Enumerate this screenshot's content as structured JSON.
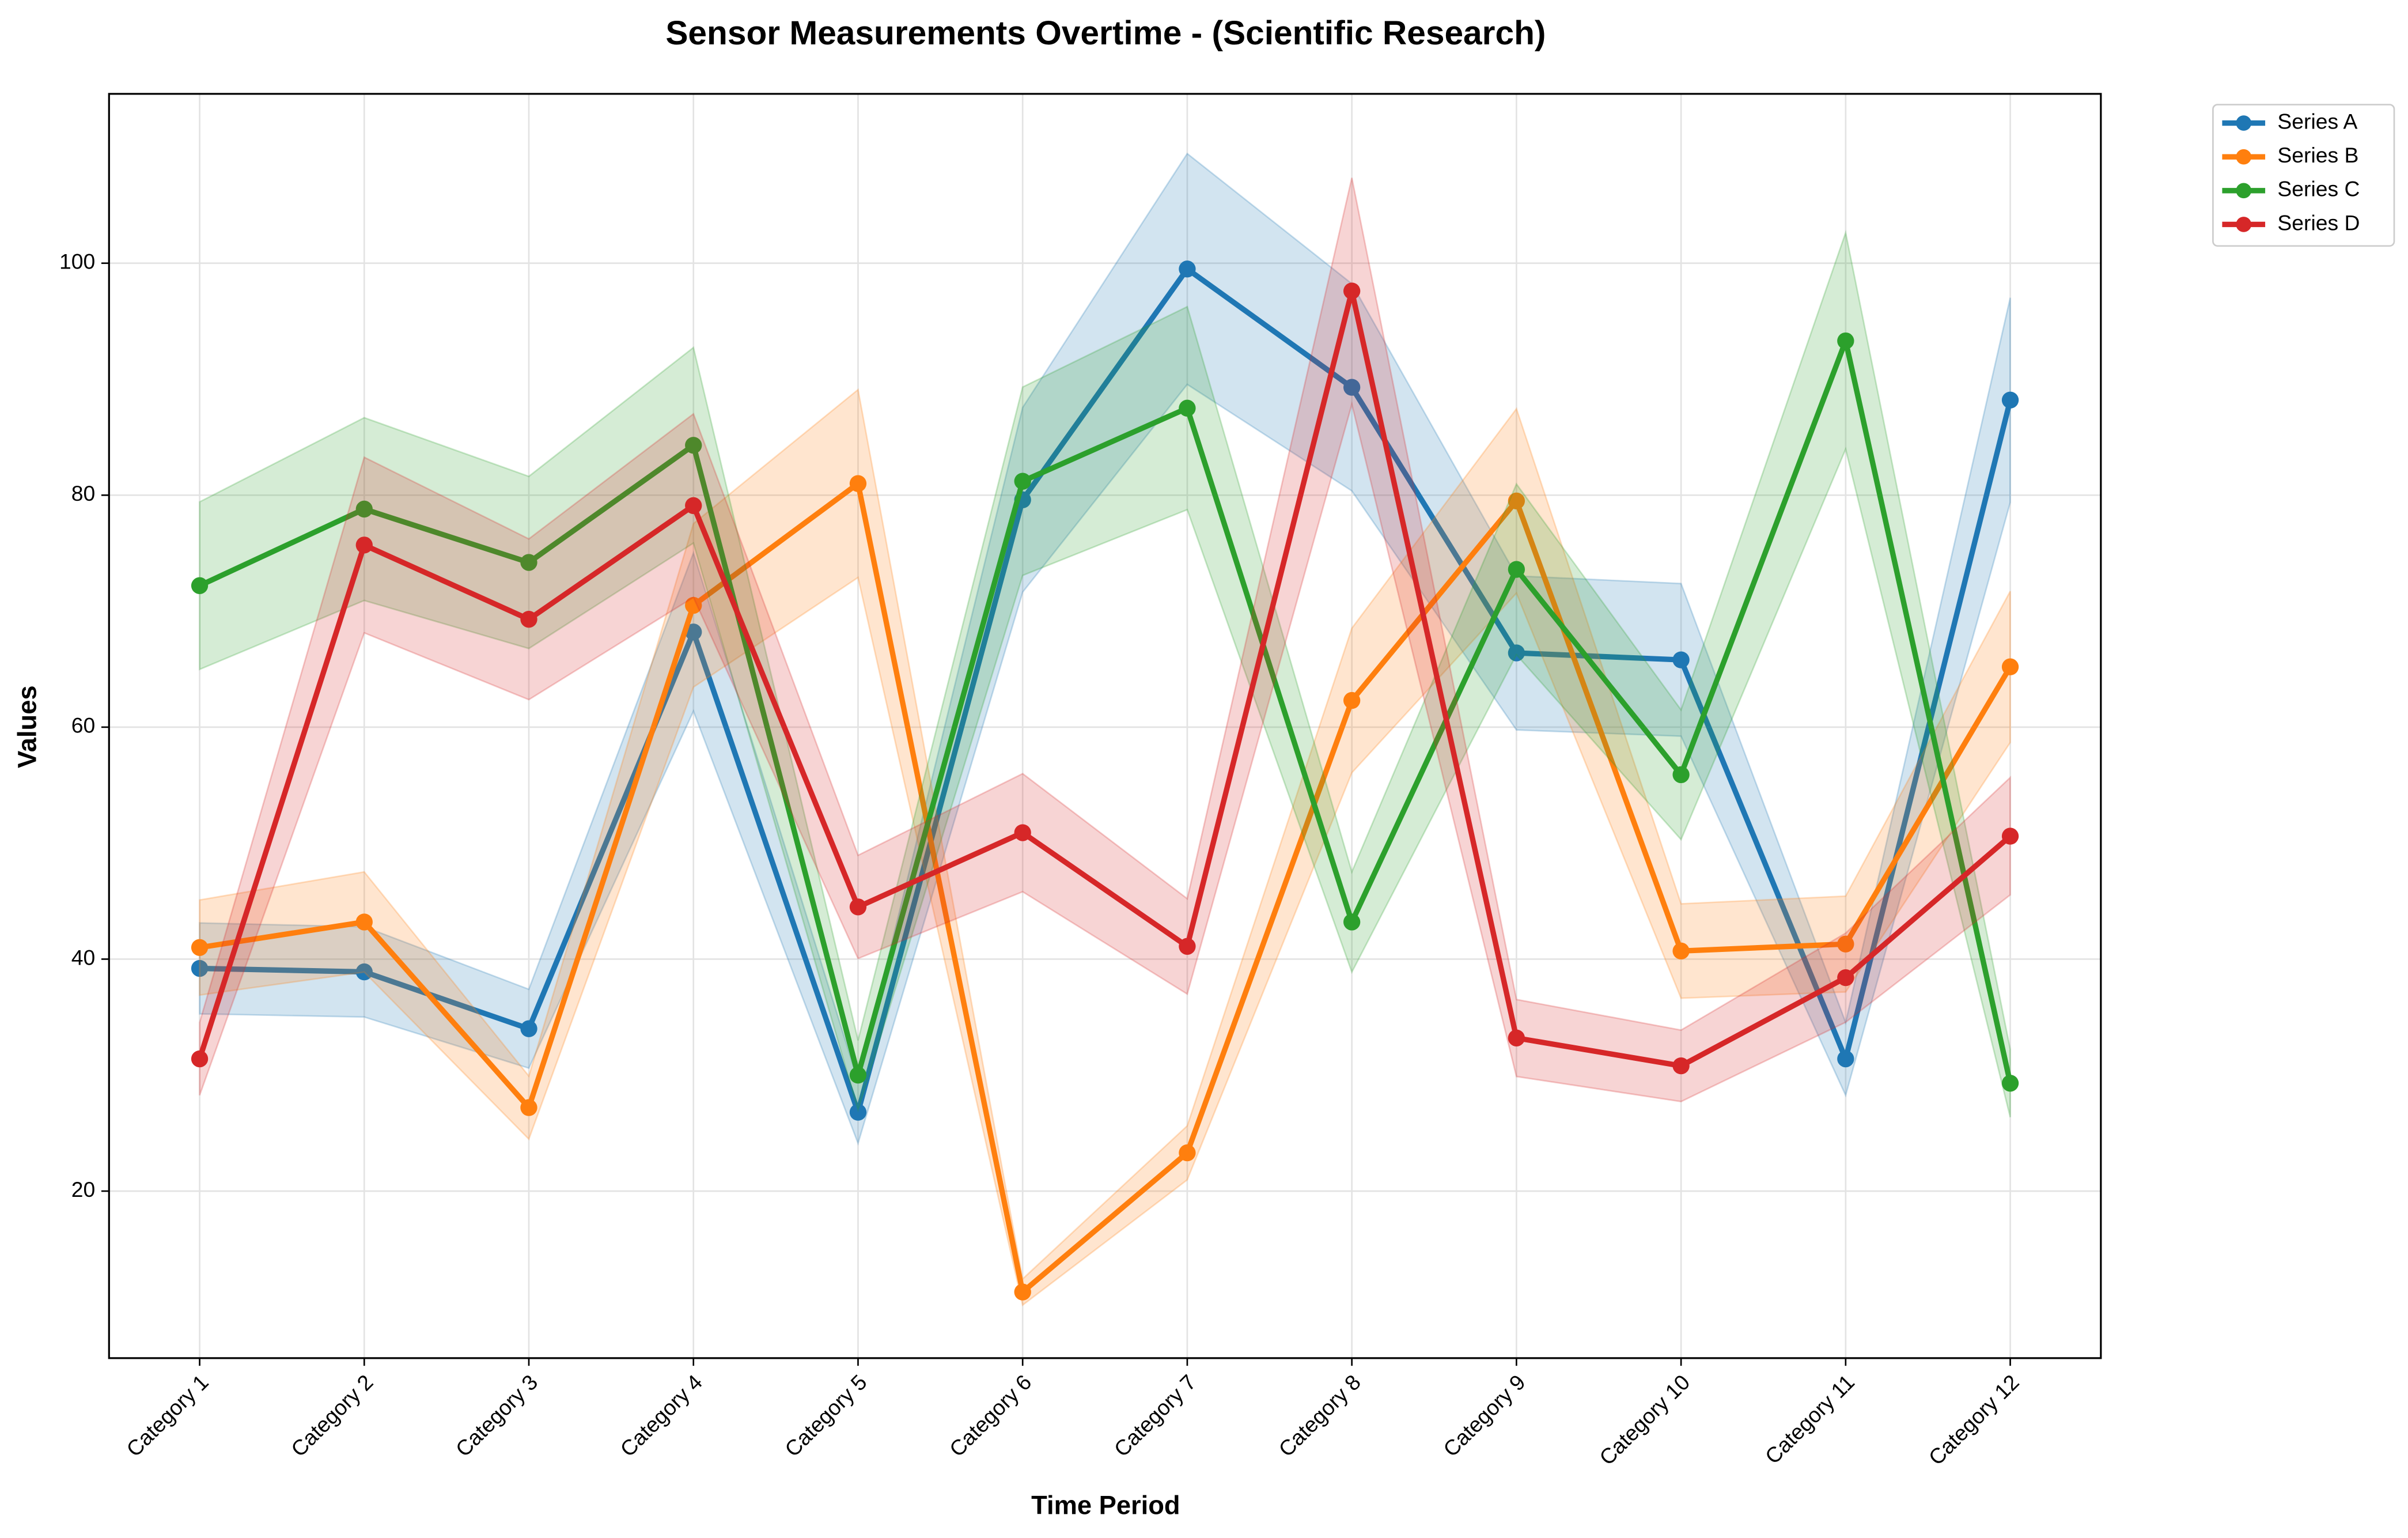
{
  "chart_data": {
    "type": "line",
    "title": "Sensor Measurements Overtime - (Scientific Research)",
    "x_label": "Time Period",
    "y_label": "Values",
    "categories": [
      "Category 1",
      "Category 2",
      "Category 3",
      "Category 4",
      "Category 5",
      "Category 6",
      "Category 7",
      "Category 8",
      "Category 9",
      "Category 10",
      "Category 11",
      "Category 12"
    ],
    "series": [
      {
        "name": "Series A",
        "color": "#1f77b4",
        "values": [
          39.2,
          38.9,
          34.0,
          68.2,
          26.8,
          79.6,
          99.5,
          89.3,
          66.4,
          65.8,
          31.4,
          88.2
        ]
      },
      {
        "name": "Series B",
        "color": "#ff7f0e",
        "values": [
          41.0,
          43.2,
          27.2,
          70.5,
          81.0,
          11.3,
          23.3,
          62.3,
          79.5,
          40.7,
          41.3,
          65.2
        ]
      },
      {
        "name": "Series C",
        "color": "#2ca02c",
        "values": [
          72.2,
          78.8,
          74.2,
          84.3,
          30.0,
          81.2,
          87.5,
          43.2,
          73.6,
          55.9,
          93.3,
          29.3
        ]
      },
      {
        "name": "Series D",
        "color": "#d62728",
        "values": [
          31.4,
          75.7,
          69.3,
          79.1,
          44.5,
          50.9,
          41.1,
          97.6,
          33.2,
          30.8,
          38.4,
          50.6
        ]
      }
    ],
    "band": 0.1,
    "ylim": [
      5.6,
      114.6
    ],
    "yticks": [
      20,
      40,
      60,
      80,
      100
    ],
    "grid": true,
    "legend": "upper right"
  }
}
